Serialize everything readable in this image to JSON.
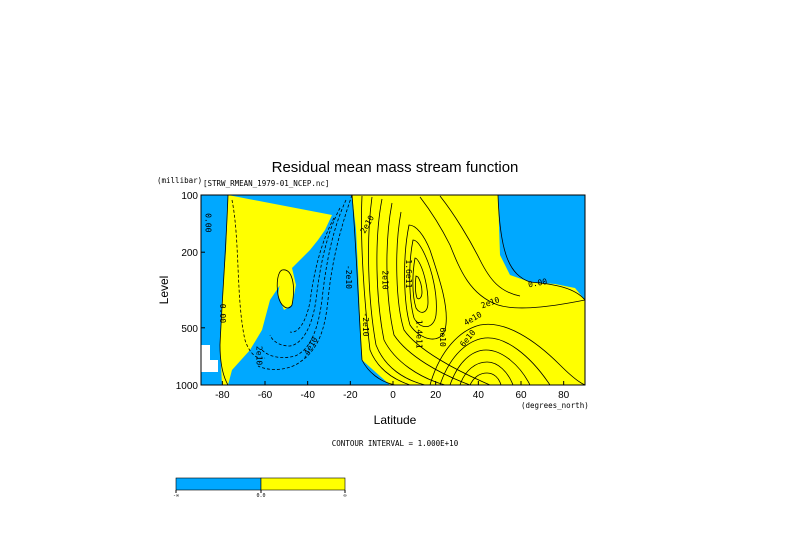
{
  "chart_data": {
    "type": "contour",
    "title": "Residual mean mass stream function",
    "source_file": "[STRW_RMEAN_1979-01_NCEP.nc]",
    "xlabel": "Latitude",
    "x_units": "(degrees_north)",
    "ylabel": "Level",
    "y_units": "(millibar)",
    "xlim": [
      -90,
      90
    ],
    "ylim": [
      1000,
      100
    ],
    "y_scale": "log-pressure",
    "x_ticks": [
      {
        "value": -80,
        "label": "-80"
      },
      {
        "value": -60,
        "label": "-60"
      },
      {
        "value": -40,
        "label": "-40"
      },
      {
        "value": -20,
        "label": "-20"
      },
      {
        "value": 0,
        "label": "0"
      },
      {
        "value": 20,
        "label": "20"
      },
      {
        "value": 40,
        "label": "40"
      },
      {
        "value": 60,
        "label": "60"
      },
      {
        "value": 80,
        "label": "80"
      }
    ],
    "y_ticks": [
      {
        "value": 100,
        "label": "100"
      },
      {
        "value": 200,
        "label": "200"
      },
      {
        "value": 500,
        "label": "500"
      },
      {
        "value": 1000,
        "label": "1000"
      }
    ],
    "contour_interval_text": "CONTOUR INTERVAL = 1.000E+10",
    "contour_interval": 10000000000,
    "fill_colors": {
      "negative": "#00a8ff",
      "positive": "#ffff00"
    },
    "colorbar": {
      "labels": [
        "-∞",
        "0.0",
        "∞"
      ]
    },
    "contour_labels": [
      {
        "text": "0.00",
        "lat": -88,
        "p": 140,
        "rot": 90
      },
      {
        "text": "0.00",
        "lat": -81,
        "p": 420,
        "rot": 90
      },
      {
        "text": "2e10",
        "lat": -64,
        "p": 700,
        "rot": 90
      },
      {
        "text": "-4e10",
        "lat": -38,
        "p": 650,
        "rot": -60
      },
      {
        "text": "-2e10",
        "lat": -22,
        "p": 270,
        "rot": 90
      },
      {
        "text": "-2e10",
        "lat": -14,
        "p": 480,
        "rot": 90
      },
      {
        "text": "2e10",
        "lat": -11,
        "p": 145,
        "rot": -60
      },
      {
        "text": "2e10",
        "lat": -5,
        "p": 280,
        "rot": 90
      },
      {
        "text": "1.6e11",
        "lat": 6,
        "p": 260,
        "rot": 90
      },
      {
        "text": "1.4e11",
        "lat": 11,
        "p": 540,
        "rot": 90
      },
      {
        "text": "6e10",
        "lat": 22,
        "p": 560,
        "rot": 90
      },
      {
        "text": "2e10",
        "lat": 46,
        "p": 380,
        "rot": -20
      },
      {
        "text": "4e10",
        "lat": 38,
        "p": 460,
        "rot": -30
      },
      {
        "text": "6e10",
        "lat": 36,
        "p": 580,
        "rot": -50
      },
      {
        "text": "0.00",
        "lat": 68,
        "p": 300,
        "rot": -10
      }
    ]
  }
}
